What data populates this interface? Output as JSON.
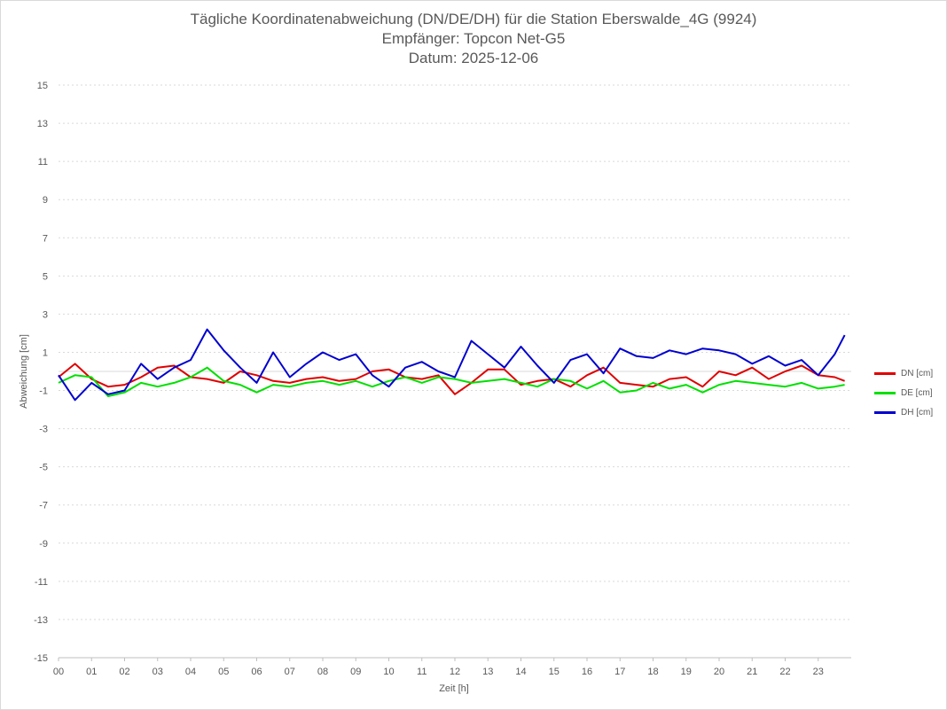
{
  "title": {
    "line1": "Tägliche Koordinatenabweichung (DN/DE/DH) für die Station Eberswalde_4G (9924)",
    "line2": "Empfänger: Topcon Net-G5",
    "line3": "Datum: 2025-12-06"
  },
  "chart_data": {
    "type": "line",
    "title": "Tägliche Koordinatenabweichung (DN/DE/DH) für die Station Eberswalde_4G (9924)",
    "subtitle": [
      "Empfänger: Topcon Net-G5",
      "Datum: 2025-12-06"
    ],
    "xlabel": "Zeit [h]",
    "ylabel": "Abweichung [cm]",
    "xlim": [
      0,
      24
    ],
    "ylim": [
      -15,
      15
    ],
    "yticks": [
      -15,
      -13,
      -11,
      -9,
      -7,
      -5,
      -3,
      -1,
      1,
      3,
      5,
      7,
      9,
      11,
      13,
      15
    ],
    "xtick_labels": [
      "00",
      "01",
      "02",
      "03",
      "04",
      "05",
      "06",
      "07",
      "08",
      "09",
      "10",
      "11",
      "12",
      "13",
      "14",
      "15",
      "16",
      "17",
      "18",
      "19",
      "20",
      "21",
      "22",
      "23"
    ],
    "grid": "horizontal dotted",
    "legend_position": "right",
    "x": [
      0,
      0.5,
      1,
      1.5,
      2,
      2.5,
      3,
      3.5,
      4,
      4.5,
      5,
      5.5,
      6,
      6.5,
      7,
      7.5,
      8,
      8.5,
      9,
      9.5,
      10,
      10.5,
      11,
      11.5,
      12,
      12.5,
      13,
      13.5,
      14,
      14.5,
      15,
      15.5,
      16,
      16.5,
      17,
      17.5,
      18,
      18.5,
      19,
      19.5,
      20,
      20.5,
      21,
      21.5,
      22,
      22.5,
      23,
      23.5,
      23.8
    ],
    "series": [
      {
        "name": "DN [cm]",
        "color": "#e00000",
        "values": [
          -0.3,
          0.4,
          -0.4,
          -0.8,
          -0.7,
          -0.3,
          0.2,
          0.3,
          -0.3,
          -0.4,
          -0.6,
          0.0,
          -0.2,
          -0.5,
          -0.6,
          -0.4,
          -0.3,
          -0.5,
          -0.4,
          0.0,
          0.1,
          -0.3,
          -0.4,
          -0.2,
          -1.2,
          -0.6,
          0.1,
          0.1,
          -0.7,
          -0.5,
          -0.4,
          -0.8,
          -0.2,
          0.2,
          -0.6,
          -0.7,
          -0.8,
          -0.4,
          -0.3,
          -0.8,
          0.0,
          -0.2,
          0.2,
          -0.4,
          0.0,
          0.3,
          -0.2,
          -0.3,
          -0.5
        ]
      },
      {
        "name": "DE [cm]",
        "color": "#00e000",
        "values": [
          -0.6,
          -0.2,
          -0.3,
          -1.3,
          -1.1,
          -0.6,
          -0.8,
          -0.6,
          -0.3,
          0.2,
          -0.5,
          -0.7,
          -1.1,
          -0.7,
          -0.8,
          -0.6,
          -0.5,
          -0.7,
          -0.5,
          -0.8,
          -0.5,
          -0.3,
          -0.6,
          -0.3,
          -0.4,
          -0.6,
          -0.5,
          -0.4,
          -0.6,
          -0.8,
          -0.4,
          -0.5,
          -0.9,
          -0.5,
          -1.1,
          -1.0,
          -0.6,
          -0.9,
          -0.7,
          -1.1,
          -0.7,
          -0.5,
          -0.6,
          -0.7,
          -0.8,
          -0.6,
          -0.9,
          -0.8,
          -0.7
        ]
      },
      {
        "name": "DH [cm]",
        "color": "#0000d0",
        "values": [
          -0.2,
          -1.5,
          -0.6,
          -1.2,
          -1.0,
          0.4,
          -0.4,
          0.2,
          0.6,
          2.2,
          1.1,
          0.2,
          -0.6,
          1.0,
          -0.3,
          0.4,
          1.0,
          0.6,
          0.9,
          -0.2,
          -0.8,
          0.2,
          0.5,
          0.0,
          -0.3,
          1.6,
          0.9,
          0.2,
          1.3,
          0.3,
          -0.6,
          0.6,
          0.9,
          -0.1,
          1.2,
          0.8,
          0.7,
          1.1,
          0.9,
          1.2,
          1.1,
          0.9,
          0.4,
          0.8,
          0.3,
          0.6,
          -0.2,
          0.9,
          1.9
        ]
      }
    ]
  }
}
